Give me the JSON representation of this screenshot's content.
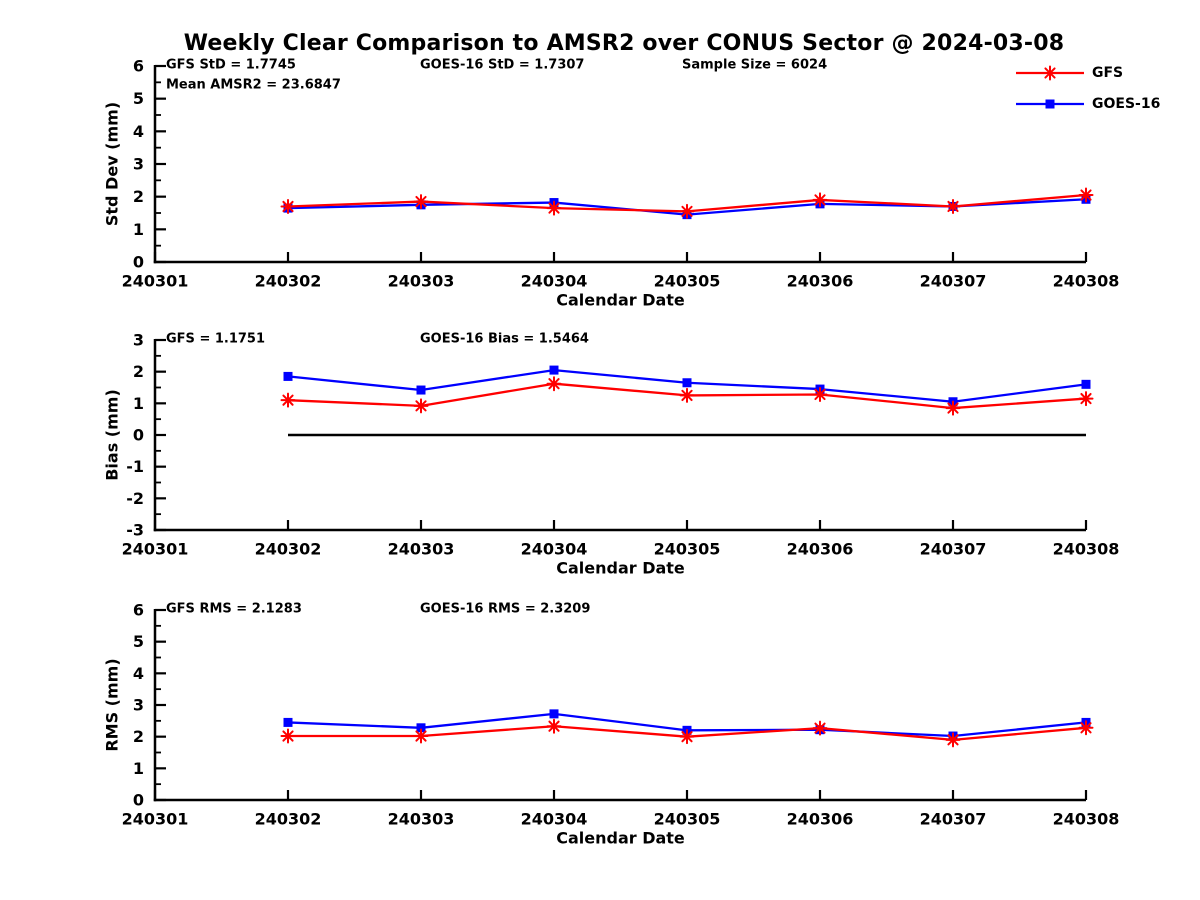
{
  "title": "Weekly Clear Comparison to AMSR2 over CONUS Sector @ 2024-03-08",
  "colors": {
    "gfs": "#ff0000",
    "goes16": "#0000ff",
    "axis": "#000000",
    "text": "#000000",
    "zero_line": "#000000",
    "background": "#ffffff"
  },
  "legend": {
    "position": "top-right",
    "items": [
      {
        "label": "GFS",
        "marker": "asterisk",
        "color": "#ff0000"
      },
      {
        "label": "GOES-16",
        "marker": "square",
        "color": "#0000ff"
      }
    ]
  },
  "x_axis": {
    "label": "Calendar Date",
    "categories": [
      "240301",
      "240302",
      "240303",
      "240304",
      "240305",
      "240306",
      "240307",
      "240308"
    ],
    "data_categories": [
      "240302",
      "240303",
      "240304",
      "240305",
      "240306",
      "240307",
      "240308"
    ]
  },
  "chart_data": [
    {
      "type": "line",
      "name": "std-dev",
      "ylabel": "Std Dev (mm)",
      "ylim": [
        0,
        6
      ],
      "ytick_step": 1,
      "grid": false,
      "zero_line": false,
      "annotations": [
        {
          "text": "GFS StD = 1.7745",
          "col": 0,
          "row": 0
        },
        {
          "text": "GOES-16 StD = 1.7307",
          "col": 1,
          "row": 0
        },
        {
          "text": "Sample Size = 6024",
          "col": 2,
          "row": 0
        },
        {
          "text": "Mean AMSR2 = 23.6847",
          "col": 0,
          "row": 1
        }
      ],
      "x": [
        "240302",
        "240303",
        "240304",
        "240305",
        "240306",
        "240307",
        "240308"
      ],
      "series": [
        {
          "name": "GFS",
          "color": "#ff0000",
          "marker": "asterisk",
          "values": [
            1.7,
            1.85,
            1.65,
            1.55,
            1.9,
            1.7,
            2.05
          ]
        },
        {
          "name": "GOES-16",
          "color": "#0000ff",
          "marker": "square",
          "values": [
            1.65,
            1.75,
            1.82,
            1.45,
            1.78,
            1.7,
            1.92
          ]
        }
      ]
    },
    {
      "type": "line",
      "name": "bias",
      "ylabel": "Bias (mm)",
      "ylim": [
        -3,
        3
      ],
      "ytick_step": 1,
      "grid": false,
      "zero_line": true,
      "annotations": [
        {
          "text": "GFS = 1.1751",
          "col": 0,
          "row": 0
        },
        {
          "text": "GOES-16 Bias  = 1.5464",
          "col": 1,
          "row": 0
        }
      ],
      "x": [
        "240302",
        "240303",
        "240304",
        "240305",
        "240306",
        "240307",
        "240308"
      ],
      "series": [
        {
          "name": "GFS",
          "color": "#ff0000",
          "marker": "asterisk",
          "values": [
            1.1,
            0.92,
            1.62,
            1.25,
            1.28,
            0.85,
            1.15
          ]
        },
        {
          "name": "GOES-16",
          "color": "#0000ff",
          "marker": "square",
          "values": [
            1.85,
            1.42,
            2.05,
            1.65,
            1.45,
            1.05,
            1.6
          ]
        }
      ]
    },
    {
      "type": "line",
      "name": "rms",
      "ylabel": "RMS (mm)",
      "ylim": [
        0,
        6
      ],
      "ytick_step": 1,
      "grid": false,
      "zero_line": false,
      "annotations": [
        {
          "text": "GFS RMS = 2.1283",
          "col": 0,
          "row": 0
        },
        {
          "text": "GOES-16 RMS = 2.3209",
          "col": 1,
          "row": 0
        }
      ],
      "x": [
        "240302",
        "240303",
        "240304",
        "240305",
        "240306",
        "240307",
        "240308"
      ],
      "series": [
        {
          "name": "GFS",
          "color": "#ff0000",
          "marker": "asterisk",
          "values": [
            2.02,
            2.02,
            2.33,
            2.0,
            2.27,
            1.9,
            2.28
          ]
        },
        {
          "name": "GOES-16",
          "color": "#0000ff",
          "marker": "square",
          "values": [
            2.45,
            2.28,
            2.72,
            2.2,
            2.22,
            2.02,
            2.45
          ]
        }
      ]
    }
  ]
}
